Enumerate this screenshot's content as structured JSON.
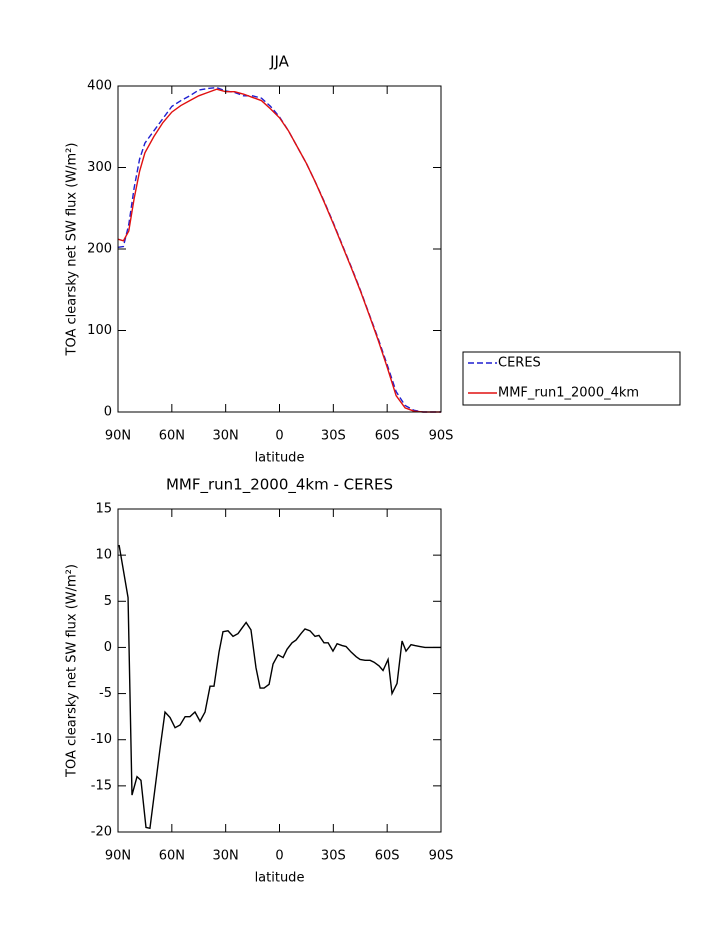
{
  "chart_data": [
    {
      "type": "line",
      "title": "JJA",
      "x_label": "latitude",
      "y_label": "TOA clearsky net SW flux (W/m²)",
      "x": [
        90,
        87,
        84,
        81,
        78,
        75,
        70,
        65,
        60,
        55,
        50,
        45,
        40,
        35,
        30,
        25,
        20,
        15,
        10,
        5,
        0,
        -5,
        -10,
        -15,
        -20,
        -25,
        -30,
        -35,
        -40,
        -45,
        -50,
        -55,
        -60,
        -65,
        -70,
        -75,
        -80,
        -85,
        -90
      ],
      "series": [
        {
          "name": "CERES",
          "color": "#1f1fd0",
          "dashed": true,
          "values": [
            202,
            203,
            230,
            275,
            310,
            330,
            345,
            360,
            375,
            382,
            388,
            395,
            397,
            398,
            394,
            392,
            388,
            388,
            385,
            375,
            362,
            345,
            325,
            305,
            282,
            258,
            232,
            205,
            178,
            150,
            120,
            90,
            58,
            25,
            8,
            2,
            0,
            0,
            0
          ]
        },
        {
          "name": "MMF_run1_2000_4km",
          "color": "#e01010",
          "dashed": false,
          "values": [
            212,
            210,
            222,
            262,
            295,
            318,
            338,
            355,
            368,
            376,
            382,
            388,
            392,
            396,
            393,
            393,
            390,
            386,
            382,
            372,
            361,
            345,
            325,
            305,
            282,
            257,
            231,
            204,
            177,
            149,
            119,
            88,
            55,
            20,
            5,
            1,
            0,
            0,
            0
          ]
        }
      ],
      "xlim": [
        90,
        -90
      ],
      "xticks": [
        {
          "value": 90,
          "label": "90N"
        },
        {
          "value": 60,
          "label": "60N"
        },
        {
          "value": 30,
          "label": "30N"
        },
        0,
        {
          "value": -30,
          "label": "30S"
        },
        {
          "value": -60,
          "label": "60S"
        },
        {
          "value": -90,
          "label": "90S"
        }
      ],
      "ylim": [
        0,
        400
      ],
      "yticks": [
        0,
        100,
        200,
        300,
        400
      ],
      "legend": "right"
    },
    {
      "type": "line",
      "title": "MMF_run1_2000_4km - CERES",
      "x_label": "latitude",
      "y_label": "TOA clearsky net SW flux (W/m²)",
      "x": [
        89.4,
        84.4,
        82.2,
        79.4,
        77.2,
        74.4,
        72.2,
        68.8,
        66.6,
        63.8,
        61.0,
        58.2,
        55.4,
        52.6,
        49.9,
        47.1,
        44.3,
        41.5,
        38.7,
        36.5,
        33.7,
        31.5,
        28.7,
        25.9,
        23.1,
        20.9,
        18.6,
        15.9,
        13.1,
        10.8,
        8.6,
        5.8,
        3.6,
        0.8,
        -2.0,
        -4.2,
        -7.0,
        -9.2,
        -12.0,
        -14.2,
        -17.0,
        -19.8,
        -22.0,
        -24.8,
        -27.1,
        -29.8,
        -32.1,
        -34.9,
        -37.1,
        -39.9,
        -42.7,
        -44.9,
        -47.7,
        -50.5,
        -52.7,
        -55.5,
        -57.7,
        -60.5,
        -62.7,
        -65.5,
        -68.3,
        -70.5,
        -73.3,
        -75.5,
        -78.3,
        -81.1,
        -83.9,
        -87.3,
        -90
      ],
      "series": [
        {
          "name": null,
          "color": "#000000",
          "dashed": false,
          "values": [
            11.1,
            5.4,
            -16,
            -14,
            -14.4,
            -19.5,
            -19.6,
            -14.4,
            -11,
            -7,
            -7.6,
            -8.7,
            -8.4,
            -7.5,
            -7.5,
            -7,
            -8,
            -7,
            -4.2,
            -4.2,
            -0.5,
            1.7,
            1.8,
            1.2,
            1.5,
            2.1,
            2.7,
            1.9,
            -2.2,
            -4.4,
            -4.4,
            -4,
            -1.8,
            -0.8,
            -1.1,
            -0.2,
            0.5,
            0.8,
            1.5,
            2,
            1.8,
            1.2,
            1.3,
            0.5,
            0.5,
            -0.4,
            0.4,
            0.2,
            0.1,
            -0.5,
            -1,
            -1.3,
            -1.4,
            -1.4,
            -1.6,
            -2,
            -2.5,
            -1.3,
            -5,
            -3.9,
            0.7,
            -0.4,
            0.3,
            0.2,
            0.1,
            0,
            0,
            0,
            0
          ]
        }
      ],
      "xlim": [
        90,
        -90
      ],
      "xticks": [
        {
          "value": 90,
          "label": "90N"
        },
        {
          "value": 60,
          "label": "60N"
        },
        {
          "value": 30,
          "label": "30N"
        },
        0,
        {
          "value": -30,
          "label": "30S"
        },
        {
          "value": -60,
          "label": "60S"
        },
        {
          "value": -90,
          "label": "90S"
        }
      ],
      "ylim": [
        -20,
        15
      ],
      "yticks": [
        -20,
        -15,
        -10,
        -5,
        0,
        5,
        10,
        15
      ]
    }
  ]
}
